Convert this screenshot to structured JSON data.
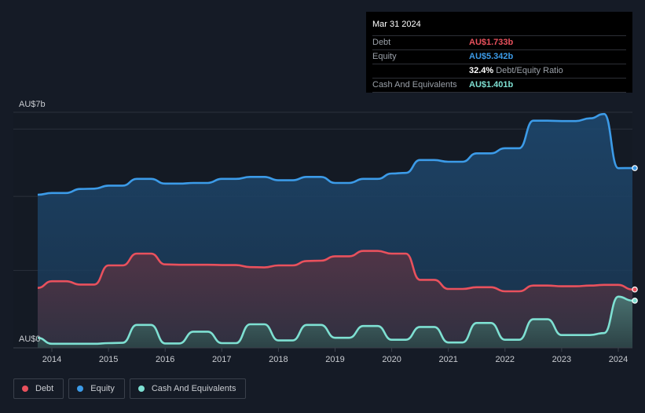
{
  "tooltip": {
    "date": "Mar 31 2024",
    "rows": [
      {
        "label": "Debt",
        "value": "AU$1.733b",
        "color": "#e9515d",
        "extra": ""
      },
      {
        "label": "Equity",
        "value": "AU$5.342b",
        "color": "#3c9be8",
        "extra": ""
      },
      {
        "label": "",
        "value": "32.4%",
        "color": "#ffffff",
        "extra": "Debt/Equity Ratio"
      },
      {
        "label": "Cash And Equivalents",
        "value": "AU$1.401b",
        "color": "#7ee0d2",
        "extra": ""
      }
    ]
  },
  "legend": [
    {
      "label": "Debt",
      "color": "#e9515d"
    },
    {
      "label": "Equity",
      "color": "#3c9be8"
    },
    {
      "label": "Cash And Equivalents",
      "color": "#7ee0d2"
    }
  ],
  "chart_data": {
    "type": "area",
    "title": "",
    "xlabel": "",
    "ylabel": "",
    "ylim": [
      0,
      7
    ],
    "y_tick_labels": [
      "AU$0",
      "AU$7b"
    ],
    "x_tick_labels": [
      "2014",
      "2015",
      "2016",
      "2017",
      "2018",
      "2019",
      "2020",
      "2021",
      "2022",
      "2023",
      "2024"
    ],
    "grid": true,
    "legend_position": "bottom-left",
    "series": [
      {
        "name": "Equity",
        "color": "#3c9be8",
        "points": [
          [
            2013.75,
            4.55
          ],
          [
            2014.0,
            4.6
          ],
          [
            2014.25,
            4.6
          ],
          [
            2014.5,
            4.72
          ],
          [
            2014.75,
            4.73
          ],
          [
            2015.0,
            4.82
          ],
          [
            2015.25,
            4.82
          ],
          [
            2015.5,
            5.02
          ],
          [
            2015.75,
            5.02
          ],
          [
            2016.0,
            4.88
          ],
          [
            2016.25,
            4.88
          ],
          [
            2016.5,
            4.9
          ],
          [
            2016.75,
            4.9
          ],
          [
            2017.0,
            5.02
          ],
          [
            2017.25,
            5.02
          ],
          [
            2017.5,
            5.08
          ],
          [
            2017.75,
            5.08
          ],
          [
            2018.0,
            4.98
          ],
          [
            2018.25,
            4.98
          ],
          [
            2018.5,
            5.08
          ],
          [
            2018.75,
            5.08
          ],
          [
            2019.0,
            4.9
          ],
          [
            2019.25,
            4.9
          ],
          [
            2019.5,
            5.02
          ],
          [
            2019.75,
            5.02
          ],
          [
            2020.0,
            5.18
          ],
          [
            2020.25,
            5.2
          ],
          [
            2020.5,
            5.58
          ],
          [
            2020.75,
            5.58
          ],
          [
            2021.0,
            5.53
          ],
          [
            2021.25,
            5.53
          ],
          [
            2021.5,
            5.78
          ],
          [
            2021.75,
            5.78
          ],
          [
            2022.0,
            5.93
          ],
          [
            2022.25,
            5.93
          ],
          [
            2022.5,
            6.75
          ],
          [
            2022.75,
            6.75
          ],
          [
            2023.0,
            6.74
          ],
          [
            2023.25,
            6.74
          ],
          [
            2023.5,
            6.82
          ],
          [
            2023.75,
            6.95
          ],
          [
            2024.0,
            5.34
          ],
          [
            2024.25,
            5.342
          ]
        ]
      },
      {
        "name": "Debt",
        "color": "#e9515d",
        "points": [
          [
            2013.75,
            1.78
          ],
          [
            2014.0,
            1.98
          ],
          [
            2014.25,
            1.98
          ],
          [
            2014.5,
            1.88
          ],
          [
            2014.75,
            1.88
          ],
          [
            2015.0,
            2.45
          ],
          [
            2015.25,
            2.45
          ],
          [
            2015.5,
            2.8
          ],
          [
            2015.75,
            2.8
          ],
          [
            2016.0,
            2.48
          ],
          [
            2016.25,
            2.47
          ],
          [
            2016.5,
            2.47
          ],
          [
            2016.75,
            2.47
          ],
          [
            2017.0,
            2.46
          ],
          [
            2017.25,
            2.46
          ],
          [
            2017.5,
            2.4
          ],
          [
            2017.75,
            2.39
          ],
          [
            2018.0,
            2.45
          ],
          [
            2018.25,
            2.45
          ],
          [
            2018.5,
            2.58
          ],
          [
            2018.75,
            2.59
          ],
          [
            2019.0,
            2.72
          ],
          [
            2019.25,
            2.72
          ],
          [
            2019.5,
            2.88
          ],
          [
            2019.75,
            2.88
          ],
          [
            2020.0,
            2.8
          ],
          [
            2020.25,
            2.8
          ],
          [
            2020.5,
            2.02
          ],
          [
            2020.75,
            2.02
          ],
          [
            2021.0,
            1.75
          ],
          [
            2021.25,
            1.75
          ],
          [
            2021.5,
            1.8
          ],
          [
            2021.75,
            1.8
          ],
          [
            2022.0,
            1.68
          ],
          [
            2022.25,
            1.68
          ],
          [
            2022.5,
            1.85
          ],
          [
            2022.75,
            1.85
          ],
          [
            2023.0,
            1.83
          ],
          [
            2023.25,
            1.83
          ],
          [
            2023.5,
            1.85
          ],
          [
            2023.75,
            1.87
          ],
          [
            2024.0,
            1.87
          ],
          [
            2024.25,
            1.733
          ]
        ]
      },
      {
        "name": "Cash And Equivalents",
        "color": "#7ee0d2",
        "points": [
          [
            2013.75,
            0.3
          ],
          [
            2014.0,
            0.12
          ],
          [
            2014.25,
            0.12
          ],
          [
            2014.5,
            0.12
          ],
          [
            2014.75,
            0.12
          ],
          [
            2015.0,
            0.14
          ],
          [
            2015.25,
            0.15
          ],
          [
            2015.5,
            0.68
          ],
          [
            2015.75,
            0.68
          ],
          [
            2016.0,
            0.13
          ],
          [
            2016.25,
            0.13
          ],
          [
            2016.5,
            0.48
          ],
          [
            2016.75,
            0.48
          ],
          [
            2017.0,
            0.14
          ],
          [
            2017.25,
            0.14
          ],
          [
            2017.5,
            0.7
          ],
          [
            2017.75,
            0.7
          ],
          [
            2018.0,
            0.22
          ],
          [
            2018.25,
            0.22
          ],
          [
            2018.5,
            0.68
          ],
          [
            2018.75,
            0.68
          ],
          [
            2019.0,
            0.3
          ],
          [
            2019.25,
            0.3
          ],
          [
            2019.5,
            0.65
          ],
          [
            2019.75,
            0.65
          ],
          [
            2020.0,
            0.24
          ],
          [
            2020.25,
            0.24
          ],
          [
            2020.5,
            0.62
          ],
          [
            2020.75,
            0.62
          ],
          [
            2021.0,
            0.16
          ],
          [
            2021.25,
            0.16
          ],
          [
            2021.5,
            0.74
          ],
          [
            2021.75,
            0.74
          ],
          [
            2022.0,
            0.24
          ],
          [
            2022.25,
            0.24
          ],
          [
            2022.5,
            0.85
          ],
          [
            2022.75,
            0.85
          ],
          [
            2023.0,
            0.38
          ],
          [
            2023.25,
            0.38
          ],
          [
            2023.5,
            0.38
          ],
          [
            2023.75,
            0.44
          ],
          [
            2024.0,
            1.52
          ],
          [
            2024.25,
            1.401
          ]
        ]
      }
    ]
  }
}
